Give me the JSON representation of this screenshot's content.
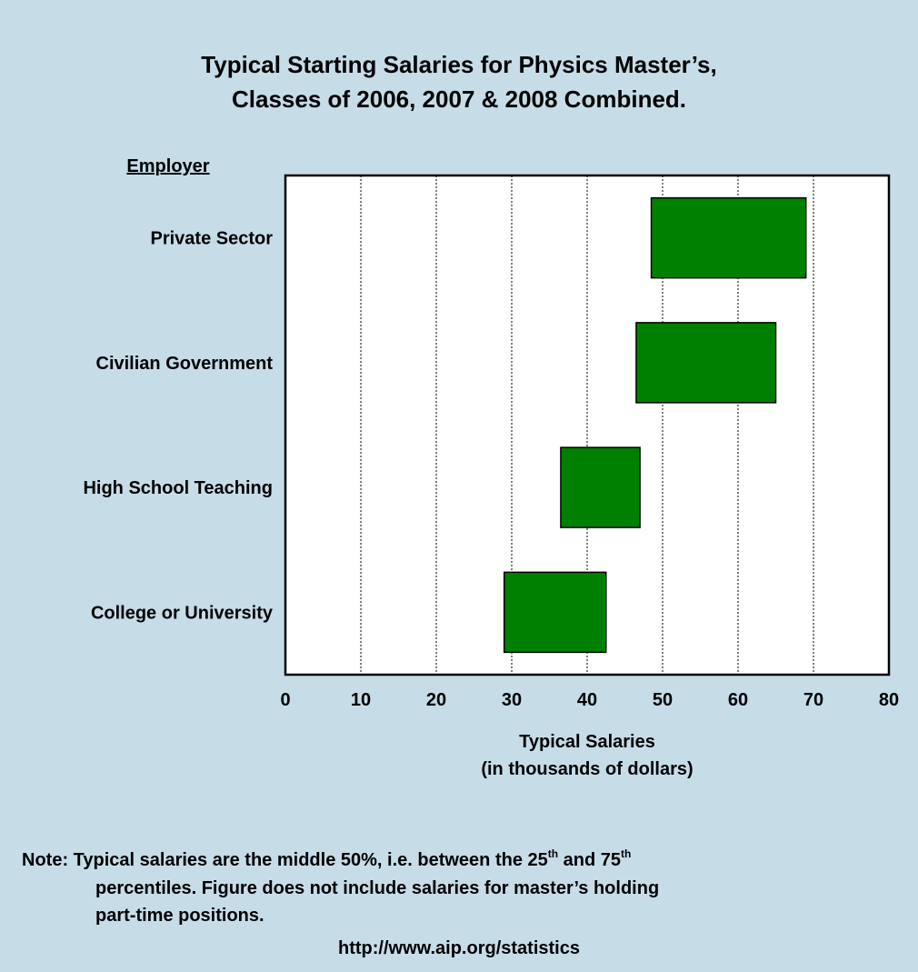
{
  "chart_data": {
    "type": "range_bar",
    "title": [
      "Typical Starting Salaries for Physics Master’s,",
      "Classes of 2006, 2007 & 2008 Combined."
    ],
    "y_axis_label": "Employer",
    "categories": [
      "Private Sector",
      "Civilian Government",
      "High School Teaching",
      "College or University"
    ],
    "low": [
      48.5,
      46.5,
      36.5,
      29
    ],
    "high": [
      69,
      65,
      47,
      42.5
    ],
    "color": "#008000",
    "xlim": [
      0,
      80
    ],
    "xticks": [
      0,
      10,
      20,
      30,
      40,
      50,
      60,
      70,
      80
    ],
    "grid": true,
    "x_axis_label": [
      "Typical Salaries",
      "(in thousands of dollars)"
    ],
    "note": [
      "Note: Typical salaries are the middle 50%, i.e. between the 25",
      "th",
      " and 75",
      "th",
      "percentiles.  Figure does not include salaries for master’s holding",
      "part-time positions."
    ],
    "source": "http://www.aip.org/statistics"
  }
}
